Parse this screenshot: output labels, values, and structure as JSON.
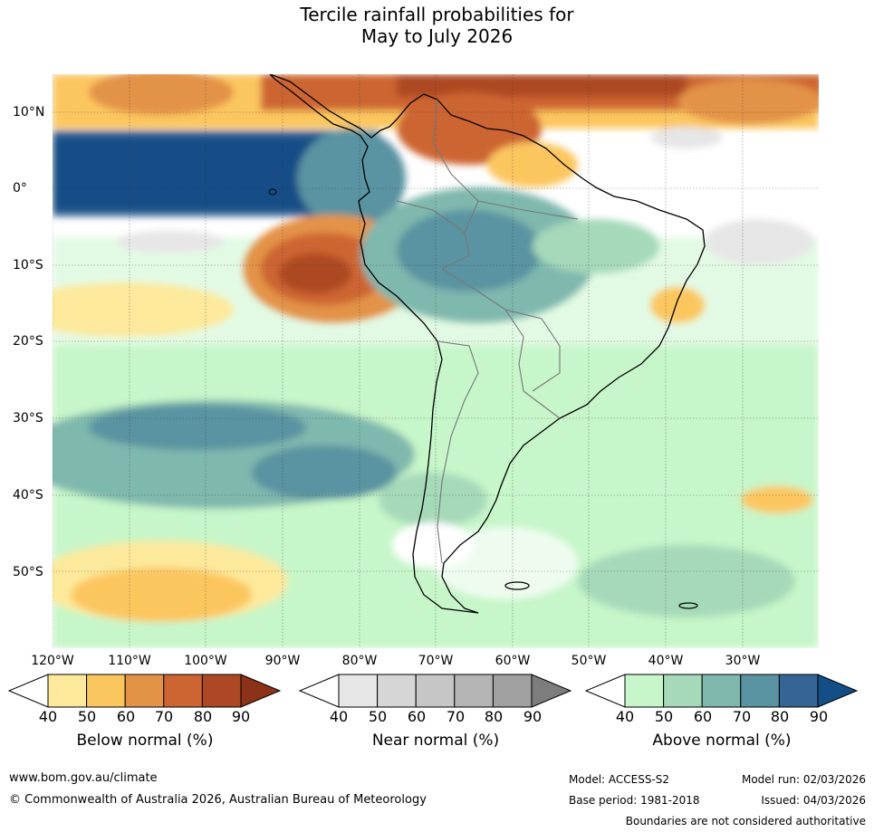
{
  "title": {
    "line1": "Tercile rainfall probabilities for",
    "line2": "May to July 2026"
  },
  "map": {
    "lon_labels": [
      "120°W",
      "110°W",
      "100°W",
      "90°W",
      "80°W",
      "70°W",
      "60°W",
      "50°W",
      "40°W",
      "30°W"
    ],
    "lat_labels": [
      "10°N",
      "0°",
      "10°S",
      "20°S",
      "30°S",
      "40°S",
      "50°S"
    ],
    "region": "South America"
  },
  "legends": [
    {
      "title": "Below normal (%)",
      "ticks": [
        "40",
        "50",
        "60",
        "70",
        "80",
        "90"
      ],
      "colors": [
        "#ffffff",
        "#fde99b",
        "#fcc65e",
        "#e39346",
        "#cd6532",
        "#ad4824",
        "#8b3219"
      ]
    },
    {
      "title": "Near normal (%)",
      "ticks": [
        "40",
        "50",
        "60",
        "70",
        "80",
        "90"
      ],
      "colors": [
        "#ffffff",
        "#e6e6e6",
        "#d6d6d6",
        "#c6c6c6",
        "#b4b4b4",
        "#a0a0a0",
        "#7d7d7d"
      ]
    },
    {
      "title": "Above normal (%)",
      "ticks": [
        "40",
        "50",
        "60",
        "70",
        "80",
        "90"
      ],
      "colors": [
        "#ffffff",
        "#c6f6c9",
        "#a5d9b9",
        "#7fb8ad",
        "#5a93a1",
        "#356594",
        "#144e86"
      ]
    }
  ],
  "footer": {
    "url": "www.bom.gov.au/climate",
    "copyright": "© Commonwealth of Australia 2026, Australian Bureau of Meteorology",
    "model": "Model: ACCESS-S2",
    "model_run": "Model run: 02/03/2026",
    "base_period": "Base period: 1981-2018",
    "issued": "Issued: 04/03/2026",
    "disclaimer": "Boundaries are not considered authoritative"
  }
}
